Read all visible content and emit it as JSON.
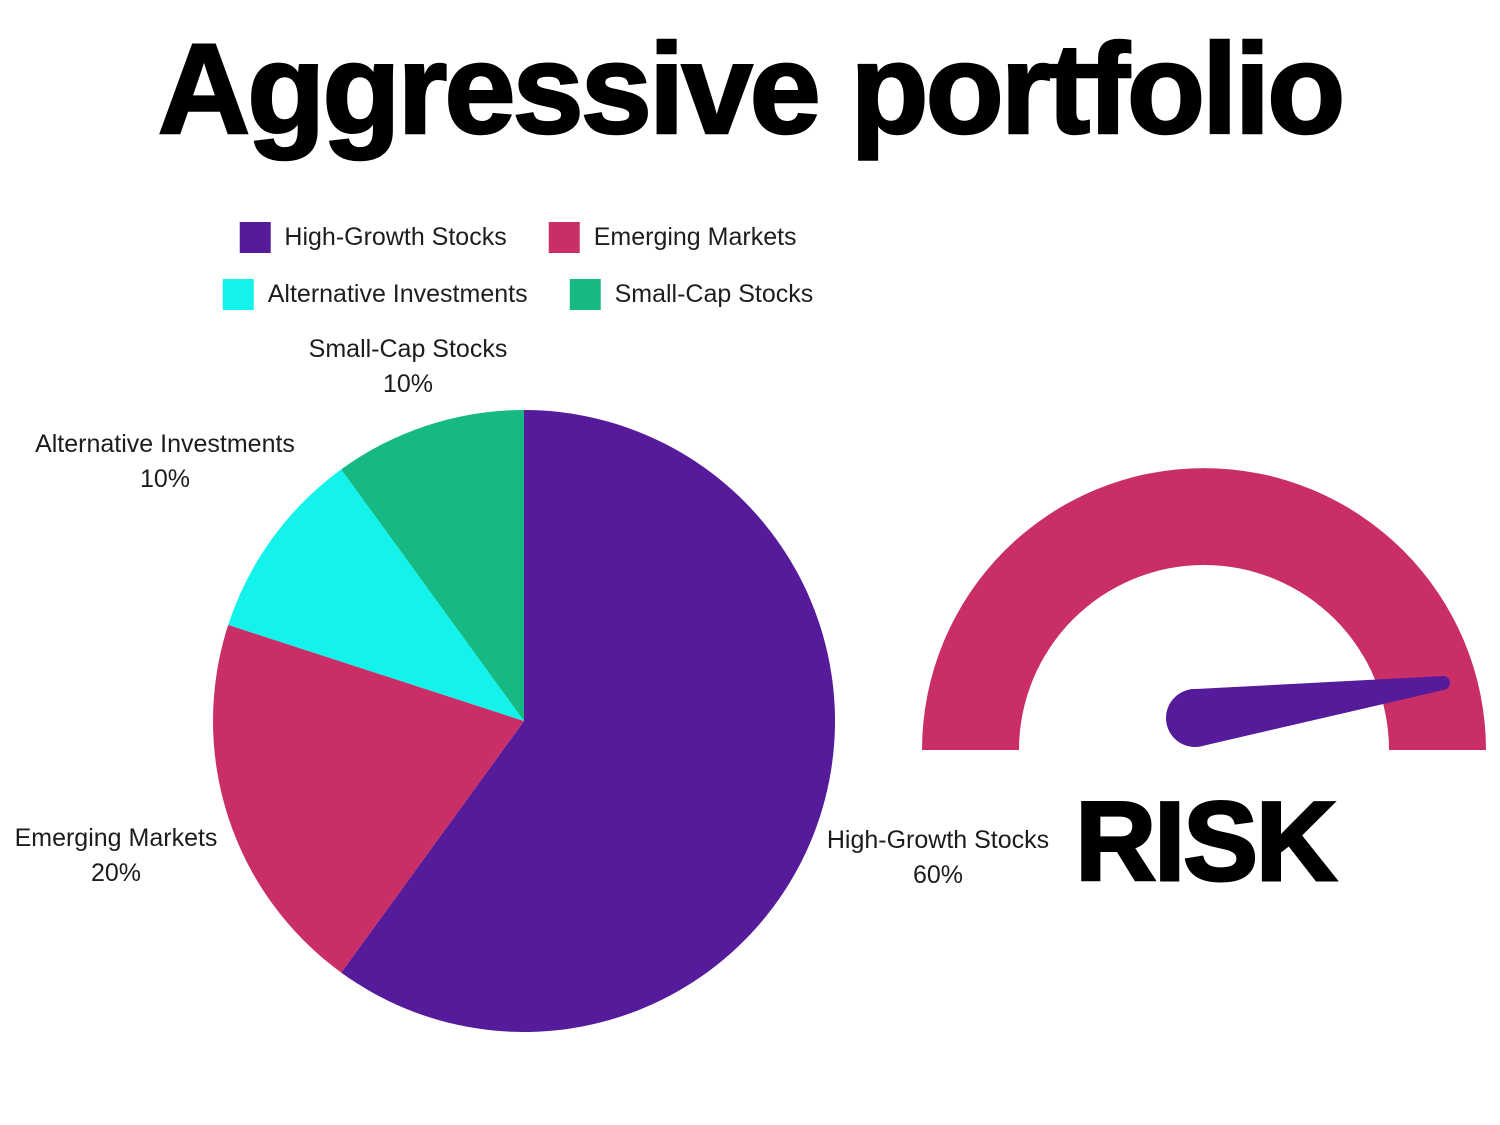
{
  "title": "Aggressive portfolio",
  "legend": {
    "items": [
      {
        "label": "High-Growth Stocks",
        "color": "#561B9B"
      },
      {
        "label": "Emerging Markets",
        "color": "#C92E66"
      },
      {
        "label": "Alternative Investments",
        "color": "#13F3EC"
      },
      {
        "label": "Small-Cap Stocks",
        "color": "#16B981"
      }
    ]
  },
  "chart_data": [
    {
      "type": "pie",
      "title": "Aggressive portfolio",
      "categories": [
        "High-Growth Stocks",
        "Emerging Markets",
        "Alternative Investments",
        "Small-Cap Stocks"
      ],
      "values": [
        60,
        20,
        10,
        10
      ],
      "value_labels": [
        "60%",
        "20%",
        "10%",
        "10%"
      ],
      "colors": [
        "#561B9B",
        "#C92E66",
        "#13F3EC",
        "#16B981"
      ],
      "start_angle_deg": 0,
      "direction": "clockwise",
      "legend_position": "top",
      "labels_position": "outside"
    },
    {
      "type": "gauge",
      "label": "RISK",
      "reading": "high",
      "arc_color": "#C92E66",
      "needle_color": "#561B9B",
      "outer_radius": 282,
      "inner_radius": 185,
      "needle": {
        "pivot": [
          273,
          250
        ],
        "tip": [
          521,
          215
        ],
        "pivot_radius": 29,
        "tip_radius": 7
      }
    }
  ]
}
